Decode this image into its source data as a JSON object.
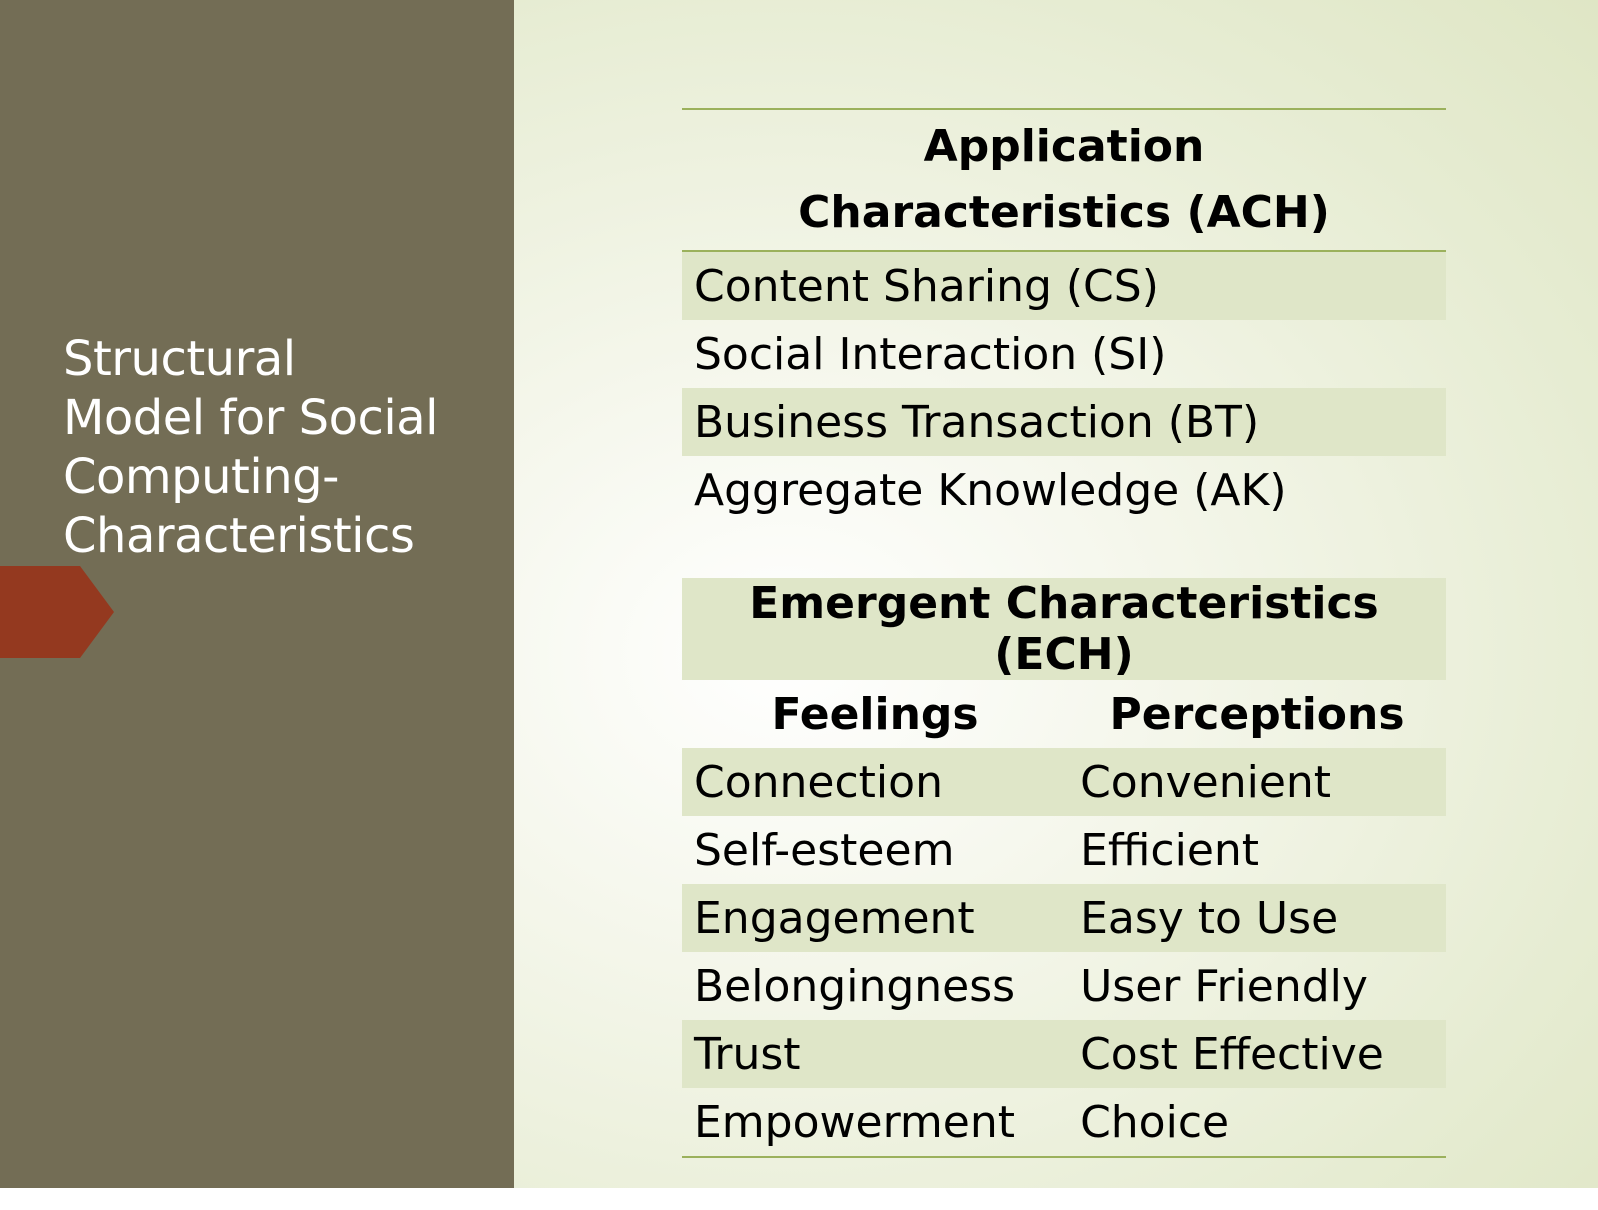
{
  "slide": {
    "title": "Structural\nModel for Social\nComputing-\nCharacteristics",
    "colors": {
      "sidebar": "#736d55",
      "accent": "#94391f",
      "rule": "#9bb15c",
      "band": "#dfe6c8"
    }
  },
  "ach": {
    "heading": "Application Characteristics (ACH)",
    "rows": [
      "Content Sharing (CS)",
      "Social Interaction (SI)",
      "Business Transaction (BT)",
      "Aggregate Knowledge (AK)"
    ]
  },
  "ech": {
    "heading": "Emergent Characteristics (ECH)",
    "columns": [
      "Feelings",
      "Perceptions"
    ],
    "rows": [
      [
        "Connection",
        "Convenient"
      ],
      [
        "Self-esteem",
        "Efficient"
      ],
      [
        "Engagement",
        "Easy to Use"
      ],
      [
        "Belongingness",
        "User Friendly"
      ],
      [
        "Trust",
        "Cost Effective"
      ],
      [
        "Empowerment",
        "Choice"
      ]
    ]
  }
}
